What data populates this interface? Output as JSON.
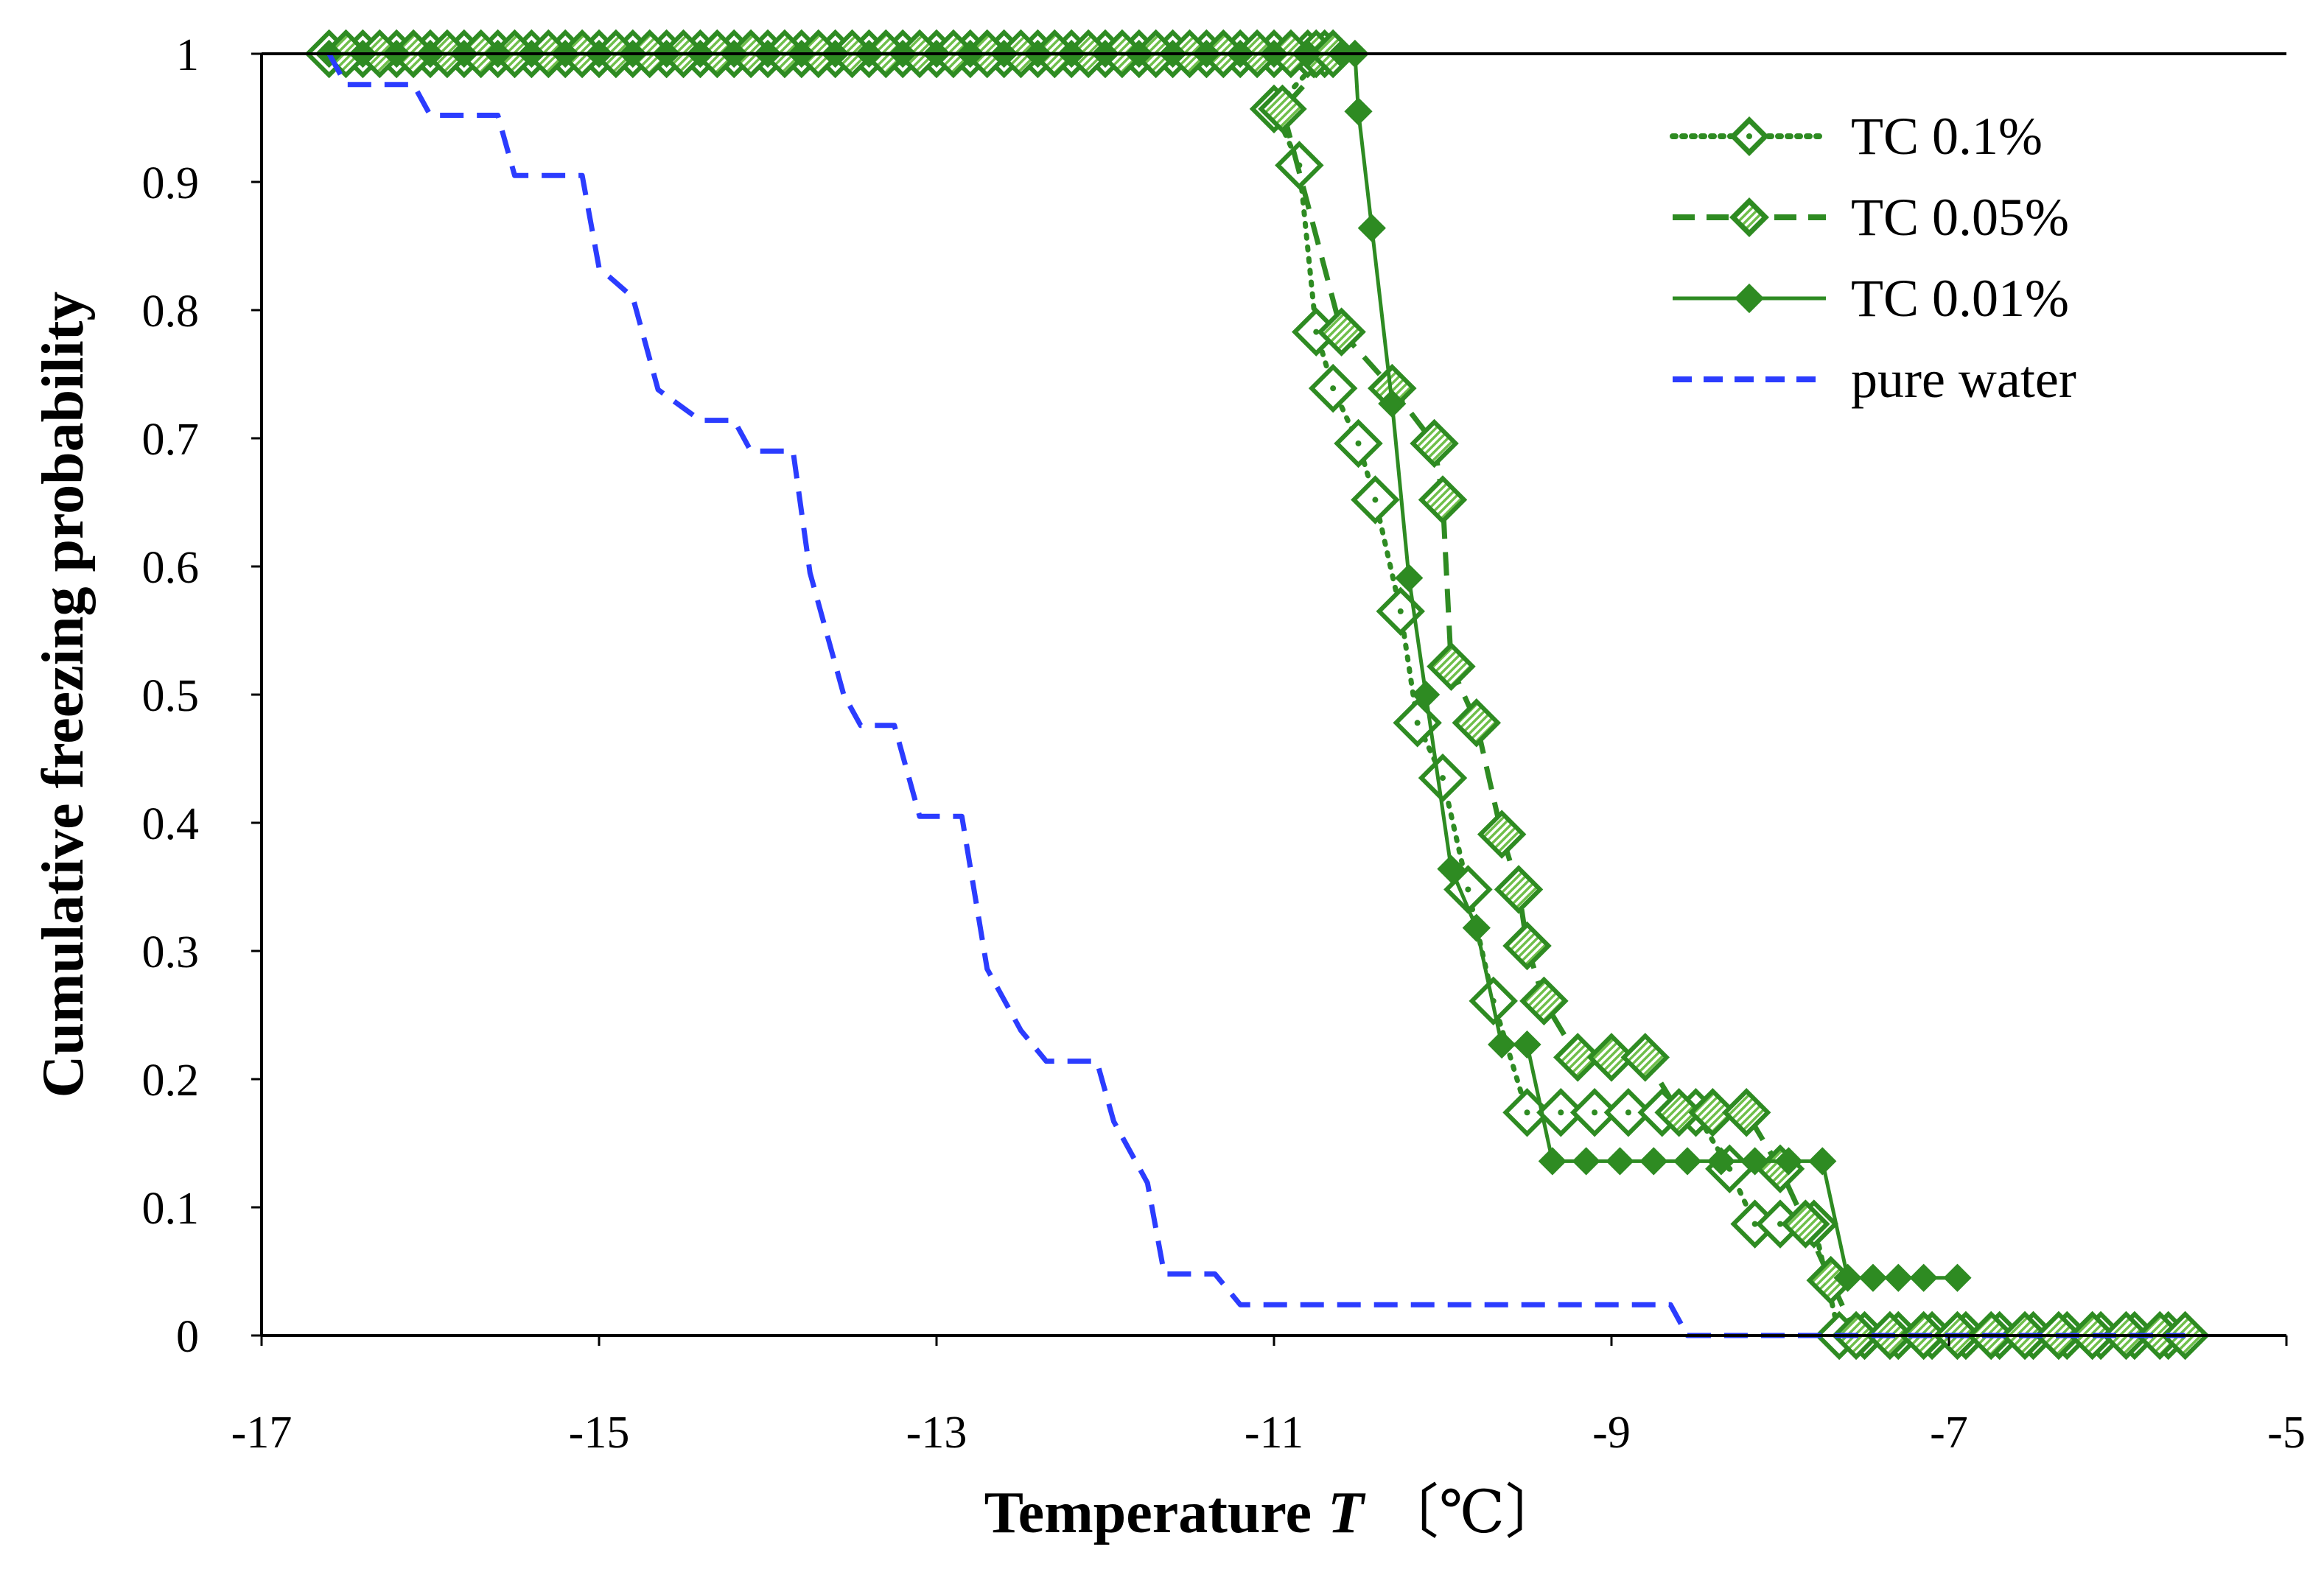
{
  "chart_data": {
    "type": "scatter",
    "title": "",
    "xlabel": "Temperature",
    "xlabel_symbol": "T",
    "xlabel_unit": "〔℃〕",
    "ylabel": "Cumulative freezing probability",
    "xlim": [
      -17,
      -5
    ],
    "ylim": [
      0,
      1
    ],
    "x_ticks": [
      -17,
      -15,
      -13,
      -11,
      -9,
      -7,
      -5
    ],
    "x_tick_labels": [
      "-17",
      "-15",
      "-13",
      "-11",
      "-9",
      "-7",
      "-5"
    ],
    "y_ticks": [
      0,
      0.1,
      0.2,
      0.3,
      0.4,
      0.5,
      0.6,
      0.7,
      0.8,
      0.9,
      1
    ],
    "y_tick_labels": [
      "0",
      "0.1",
      "0.2",
      "0.3",
      "0.4",
      "0.5",
      "0.6",
      "0.7",
      "0.8",
      "0.9",
      "1"
    ],
    "grid": false,
    "legend_position": "top-right",
    "series": [
      {
        "name": "TC 0.1%",
        "color": "#2e8b22",
        "line_style": "dotted",
        "marker": "diamond-open-dot",
        "points": [
          [
            -16.6,
            1
          ],
          [
            -16.4,
            1
          ],
          [
            -16.2,
            1
          ],
          [
            -16,
            1
          ],
          [
            -15.8,
            1
          ],
          [
            -15.6,
            1
          ],
          [
            -15.4,
            1
          ],
          [
            -15.2,
            1
          ],
          [
            -15,
            1
          ],
          [
            -14.8,
            1
          ],
          [
            -14.6,
            1
          ],
          [
            -14.4,
            1
          ],
          [
            -14.2,
            1
          ],
          [
            -14,
            1
          ],
          [
            -13.8,
            1
          ],
          [
            -13.6,
            1
          ],
          [
            -13.4,
            1
          ],
          [
            -13.2,
            1
          ],
          [
            -13,
            1
          ],
          [
            -12.8,
            1
          ],
          [
            -12.6,
            1
          ],
          [
            -12.4,
            1
          ],
          [
            -12.2,
            1
          ],
          [
            -12,
            1
          ],
          [
            -11.8,
            1
          ],
          [
            -11.6,
            1
          ],
          [
            -11.4,
            1
          ],
          [
            -11.2,
            1
          ],
          [
            -11,
            1
          ],
          [
            -10.8,
            1
          ],
          [
            -10.7,
            1
          ],
          [
            -11,
            0.957
          ],
          [
            -10.85,
            0.913
          ],
          [
            -10.75,
            0.783
          ],
          [
            -10.65,
            0.739
          ],
          [
            -10.5,
            0.696
          ],
          [
            -10.4,
            0.652
          ],
          [
            -10.25,
            0.565
          ],
          [
            -10.15,
            0.478
          ],
          [
            -10,
            0.435
          ],
          [
            -9.85,
            0.348
          ],
          [
            -9.7,
            0.261
          ],
          [
            -9.5,
            0.174
          ],
          [
            -9.3,
            0.174
          ],
          [
            -9.1,
            0.174
          ],
          [
            -8.9,
            0.174
          ],
          [
            -8.7,
            0.174
          ],
          [
            -8.5,
            0.174
          ],
          [
            -8.3,
            0.13
          ],
          [
            -8.15,
            0.087
          ],
          [
            -8,
            0.087
          ],
          [
            -7.8,
            0.087
          ],
          [
            -7.65,
            0
          ],
          [
            -7.5,
            0
          ],
          [
            -7.3,
            0
          ],
          [
            -7.1,
            0
          ],
          [
            -6.9,
            0
          ],
          [
            -6.7,
            0
          ],
          [
            -6.5,
            0
          ],
          [
            -6.3,
            0
          ],
          [
            -6.1,
            0
          ],
          [
            -5.9,
            0
          ],
          [
            -5.7,
            0
          ]
        ]
      },
      {
        "name": "TC 0.05%",
        "color": "#2e8b22",
        "line_style": "dashed",
        "marker": "diamond-hatched",
        "points": [
          [
            -16.5,
            1
          ],
          [
            -16.3,
            1
          ],
          [
            -16.1,
            1
          ],
          [
            -15.9,
            1
          ],
          [
            -15.7,
            1
          ],
          [
            -15.5,
            1
          ],
          [
            -15.3,
            1
          ],
          [
            -15.1,
            1
          ],
          [
            -14.9,
            1
          ],
          [
            -14.7,
            1
          ],
          [
            -14.5,
            1
          ],
          [
            -14.3,
            1
          ],
          [
            -14.1,
            1
          ],
          [
            -13.9,
            1
          ],
          [
            -13.7,
            1
          ],
          [
            -13.5,
            1
          ],
          [
            -13.3,
            1
          ],
          [
            -13.1,
            1
          ],
          [
            -12.9,
            1
          ],
          [
            -12.7,
            1
          ],
          [
            -12.5,
            1
          ],
          [
            -12.3,
            1
          ],
          [
            -12.1,
            1
          ],
          [
            -11.9,
            1
          ],
          [
            -11.7,
            1
          ],
          [
            -11.5,
            1
          ],
          [
            -11.3,
            1
          ],
          [
            -11.1,
            1
          ],
          [
            -10.9,
            1
          ],
          [
            -10.75,
            1
          ],
          [
            -10.65,
            1
          ],
          [
            -10.95,
            0.957
          ],
          [
            -10.6,
            0.783
          ],
          [
            -10.3,
            0.739
          ],
          [
            -10.05,
            0.696
          ],
          [
            -10,
            0.652
          ],
          [
            -9.95,
            0.522
          ],
          [
            -9.8,
            0.478
          ],
          [
            -9.65,
            0.391
          ],
          [
            -9.55,
            0.348
          ],
          [
            -9.5,
            0.304
          ],
          [
            -9.4,
            0.261
          ],
          [
            -9.2,
            0.217
          ],
          [
            -9,
            0.217
          ],
          [
            -8.8,
            0.217
          ],
          [
            -8.6,
            0.174
          ],
          [
            -8.4,
            0.174
          ],
          [
            -8.2,
            0.174
          ],
          [
            -8,
            0.13
          ],
          [
            -7.85,
            0.087
          ],
          [
            -7.7,
            0.043
          ],
          [
            -7.55,
            0
          ],
          [
            -7.35,
            0
          ],
          [
            -7.15,
            0
          ],
          [
            -6.95,
            0
          ],
          [
            -6.75,
            0
          ],
          [
            -6.55,
            0
          ],
          [
            -6.35,
            0
          ],
          [
            -6.15,
            0
          ],
          [
            -5.95,
            0
          ],
          [
            -5.75,
            0
          ],
          [
            -5.6,
            0
          ]
        ]
      },
      {
        "name": "TC 0.01%",
        "color": "#2e8b22",
        "line_style": "solid",
        "marker": "diamond-filled",
        "points": [
          [
            -16.6,
            1
          ],
          [
            -16.4,
            1
          ],
          [
            -16.2,
            1
          ],
          [
            -16,
            1
          ],
          [
            -15.8,
            1
          ],
          [
            -15.6,
            1
          ],
          [
            -15.4,
            1
          ],
          [
            -15.2,
            1
          ],
          [
            -15,
            1
          ],
          [
            -14.8,
            1
          ],
          [
            -14.6,
            1
          ],
          [
            -14.4,
            1
          ],
          [
            -14.2,
            1
          ],
          [
            -14,
            1
          ],
          [
            -13.8,
            1
          ],
          [
            -13.6,
            1
          ],
          [
            -13.4,
            1
          ],
          [
            -13.2,
            1
          ],
          [
            -13,
            1
          ],
          [
            -12.8,
            1
          ],
          [
            -12.6,
            1
          ],
          [
            -12.4,
            1
          ],
          [
            -12.2,
            1
          ],
          [
            -12,
            1
          ],
          [
            -11.8,
            1
          ],
          [
            -11.6,
            1
          ],
          [
            -11.4,
            1
          ],
          [
            -11.2,
            1
          ],
          [
            -11,
            1
          ],
          [
            -10.8,
            1
          ],
          [
            -10.6,
            1
          ],
          [
            -10.52,
            1
          ],
          [
            -10.5,
            0.955
          ],
          [
            -10.42,
            0.864
          ],
          [
            -10.3,
            0.727
          ],
          [
            -10.2,
            0.591
          ],
          [
            -10.1,
            0.5
          ],
          [
            -9.95,
            0.364
          ],
          [
            -9.8,
            0.318
          ],
          [
            -9.65,
            0.227
          ],
          [
            -9.5,
            0.227
          ],
          [
            -9.35,
            0.136
          ],
          [
            -9.15,
            0.136
          ],
          [
            -8.95,
            0.136
          ],
          [
            -8.75,
            0.136
          ],
          [
            -8.55,
            0.136
          ],
          [
            -8.35,
            0.136
          ],
          [
            -8.15,
            0.136
          ],
          [
            -7.95,
            0.136
          ],
          [
            -7.75,
            0.136
          ],
          [
            -7.6,
            0.045
          ],
          [
            -7.45,
            0.045
          ],
          [
            -7.3,
            0.045
          ],
          [
            -7.15,
            0.045
          ],
          [
            -6.95,
            0.045
          ]
        ]
      },
      {
        "name": "pure water",
        "color": "#2b3cff",
        "line_style": "dashed",
        "marker": "none",
        "points": [
          [
            -16.6,
            1
          ],
          [
            -16.5,
            0.976
          ],
          [
            -16.1,
            0.976
          ],
          [
            -16,
            0.952
          ],
          [
            -15.6,
            0.952
          ],
          [
            -15.5,
            0.905
          ],
          [
            -15.1,
            0.905
          ],
          [
            -15,
            0.833
          ],
          [
            -14.8,
            0.81
          ],
          [
            -14.65,
            0.738
          ],
          [
            -14.4,
            0.714
          ],
          [
            -14.2,
            0.714
          ],
          [
            -14.1,
            0.69
          ],
          [
            -13.85,
            0.69
          ],
          [
            -13.75,
            0.595
          ],
          [
            -13.55,
            0.5
          ],
          [
            -13.45,
            0.476
          ],
          [
            -13.25,
            0.476
          ],
          [
            -13.1,
            0.405
          ],
          [
            -12.85,
            0.405
          ],
          [
            -12.7,
            0.286
          ],
          [
            -12.5,
            0.238
          ],
          [
            -12.35,
            0.214
          ],
          [
            -12.05,
            0.214
          ],
          [
            -11.95,
            0.167
          ],
          [
            -11.75,
            0.119
          ],
          [
            -11.65,
            0.048
          ],
          [
            -11.35,
            0.048
          ],
          [
            -11.2,
            0.024
          ],
          [
            -10.9,
            0.024
          ],
          [
            -9.9,
            0.024
          ],
          [
            -9,
            0.024
          ],
          [
            -8.65,
            0.024
          ],
          [
            -8.55,
            0
          ],
          [
            -7.5,
            0
          ],
          [
            -6.5,
            0
          ],
          [
            -5.6,
            0
          ]
        ]
      }
    ]
  }
}
